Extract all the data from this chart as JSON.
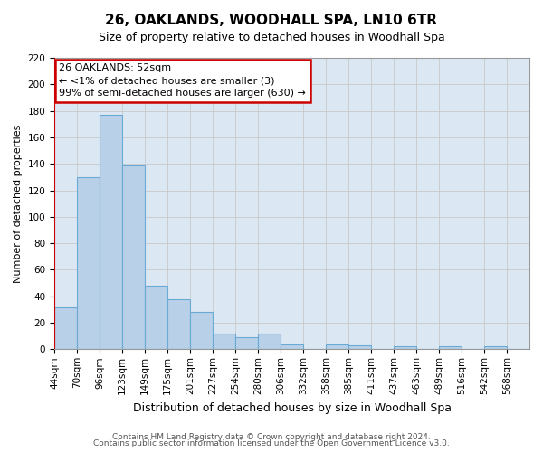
{
  "title": "26, OAKLANDS, WOODHALL SPA, LN10 6TR",
  "subtitle": "Size of property relative to detached houses in Woodhall Spa",
  "xlabel": "Distribution of detached houses by size in Woodhall Spa",
  "ylabel": "Number of detached properties",
  "bin_labels": [
    "44sqm",
    "70sqm",
    "96sqm",
    "123sqm",
    "149sqm",
    "175sqm",
    "201sqm",
    "227sqm",
    "254sqm",
    "280sqm",
    "306sqm",
    "332sqm",
    "358sqm",
    "385sqm",
    "411sqm",
    "437sqm",
    "463sqm",
    "489sqm",
    "516sqm",
    "542sqm",
    "568sqm"
  ],
  "bar_heights": [
    32,
    130,
    177,
    139,
    48,
    38,
    28,
    12,
    9,
    12,
    4,
    0,
    4,
    3,
    0,
    2,
    0,
    2,
    0,
    2,
    0
  ],
  "bar_color": "#b8d0e8",
  "bar_edge_color": "#6aaad4",
  "ylim": [
    0,
    220
  ],
  "yticks": [
    0,
    20,
    40,
    60,
    80,
    100,
    120,
    140,
    160,
    180,
    200,
    220
  ],
  "annotation_title": "26 OAKLANDS: 52sqm",
  "annotation_line1": "← <1% of detached houses are smaller (3)",
  "annotation_line2": "99% of semi-detached houses are larger (630) →",
  "annotation_box_facecolor": "#ffffff",
  "annotation_box_edgecolor": "#cc0000",
  "red_line_color": "#cc0000",
  "grid_color": "#c8c8c8",
  "axes_background": "#dbe8f4",
  "figure_background": "#ffffff",
  "footer_line1": "Contains HM Land Registry data © Crown copyright and database right 2024.",
  "footer_line2": "Contains public sector information licensed under the Open Government Licence v3.0.",
  "title_fontsize": 11,
  "subtitle_fontsize": 9,
  "xlabel_fontsize": 9,
  "ylabel_fontsize": 8,
  "tick_fontsize": 7.5,
  "annotation_fontsize": 8,
  "footer_fontsize": 6.5
}
